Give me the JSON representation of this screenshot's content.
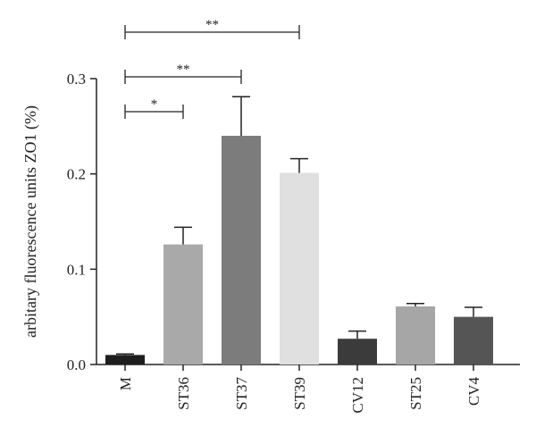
{
  "chart_data": {
    "type": "bar",
    "categories": [
      "M",
      "ST36",
      "ST37",
      "ST39",
      "CV12",
      "ST25",
      "CV4"
    ],
    "values": [
      0.01,
      0.126,
      0.24,
      0.201,
      0.027,
      0.061,
      0.05
    ],
    "errors": [
      0.001,
      0.018,
      0.041,
      0.015,
      0.008,
      0.003,
      0.01
    ],
    "bar_colors": [
      "#1e1e1e",
      "#a9a9a9",
      "#7c7c7c",
      "#e0e0e0",
      "#3b3b3b",
      "#a6a6a6",
      "#555555"
    ],
    "ylabel": "arbitary fluorescence units ZO1 (%)",
    "xlabel": "",
    "title": "",
    "ylim": [
      0,
      0.3
    ],
    "yticks": [
      0.0,
      0.1,
      0.2,
      0.3
    ],
    "ytick_labels": [
      "0.0",
      "0.1",
      "0.2",
      "0.3"
    ],
    "grid": false,
    "significance": [
      {
        "from": "M",
        "to": "ST36",
        "label": "*"
      },
      {
        "from": "M",
        "to": "ST37",
        "label": "**"
      },
      {
        "from": "M",
        "to": "ST39",
        "label": "**"
      }
    ]
  }
}
